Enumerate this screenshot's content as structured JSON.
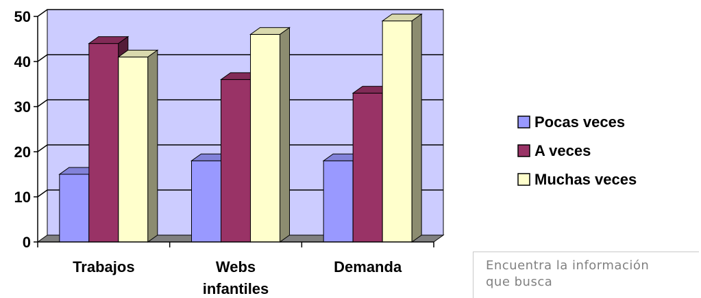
{
  "chart_data": {
    "type": "bar",
    "categories": [
      "Trabajos",
      "Webs infantiles",
      "Demanda"
    ],
    "category_lines": [
      [
        "Trabajos"
      ],
      [
        "Webs",
        "infantiles"
      ],
      [
        "Demanda"
      ]
    ],
    "series": [
      {
        "name": "Pocas veces",
        "values": [
          15,
          18,
          18
        ],
        "color": "#9999ff"
      },
      {
        "name": "A veces",
        "values": [
          44,
          36,
          33
        ],
        "color": "#993366"
      },
      {
        "name": "Muchas veces",
        "values": [
          41,
          46,
          49
        ],
        "color": "#ffffcc"
      }
    ],
    "ylim": [
      0,
      50
    ],
    "yticks": [
      0,
      10,
      20,
      30,
      40,
      50
    ],
    "grid": true,
    "legend_position": "right",
    "background_color": "#ccccff",
    "floor_color": "#808080"
  },
  "note": {
    "lines": [
      "Encuentra la información",
      "que busca"
    ]
  }
}
